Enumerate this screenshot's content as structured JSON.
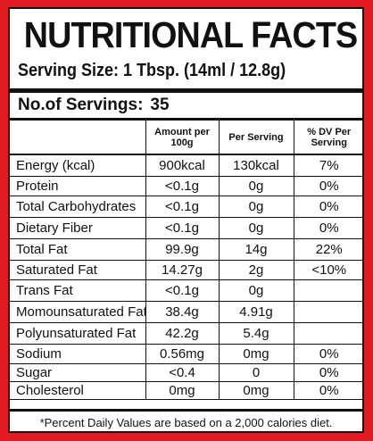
{
  "title": "NUTRITIONAL FACTS",
  "serving_size": "Serving Size: 1 Tbsp. (14ml / 12.8g)",
  "servings": {
    "label": "No.of Servings:",
    "value": "35"
  },
  "columns": {
    "amount_per_100g": "Amount per 100g",
    "per_serving": "Per Serving",
    "dv_per_serving": "% DV Per Serving"
  },
  "rows": [
    {
      "name": "Energy (kcal)",
      "per100g": "900kcal",
      "per_serving": "130kcal",
      "dv": "7%"
    },
    {
      "name": "Protein",
      "per100g": "<0.1g",
      "per_serving": "0g",
      "dv": "0%"
    },
    {
      "name": "Total Carbohydrates",
      "per100g": "<0.1g",
      "per_serving": "0g",
      "dv": "0%"
    },
    {
      "name": "Dietary Fiber",
      "per100g": "<0.1g",
      "per_serving": "0g",
      "dv": "0%"
    },
    {
      "name": "Total Fat",
      "per100g": "99.9g",
      "per_serving": "14g",
      "dv": "22%"
    },
    {
      "name": "Saturated Fat",
      "per100g": "14.27g",
      "per_serving": "2g",
      "dv": "<10%"
    },
    {
      "name": "Trans Fat",
      "per100g": "<0.1g",
      "per_serving": "0g",
      "dv": ""
    },
    {
      "name": "Momounsaturated Fat",
      "per100g": "38.4g",
      "per_serving": "4.91g",
      "dv": ""
    },
    {
      "name": "Polyunsaturated Fat",
      "per100g": "42.2g",
      "per_serving": "5.4g",
      "dv": ""
    },
    {
      "name": "Sodium",
      "per100g": "0.56mg",
      "per_serving": "0mg",
      "dv": "0%"
    },
    {
      "name": "Sugar",
      "per100g": "<0.4",
      "per_serving": "0",
      "dv": "0%"
    },
    {
      "name": "Cholesterol",
      "per100g": "0mg",
      "per_serving": "0mg",
      "dv": "0%"
    }
  ],
  "footnote": "*Percent Daily Values are based on a 2,000 calories diet.",
  "colors": {
    "border": "#e31b23",
    "text": "#111111"
  }
}
